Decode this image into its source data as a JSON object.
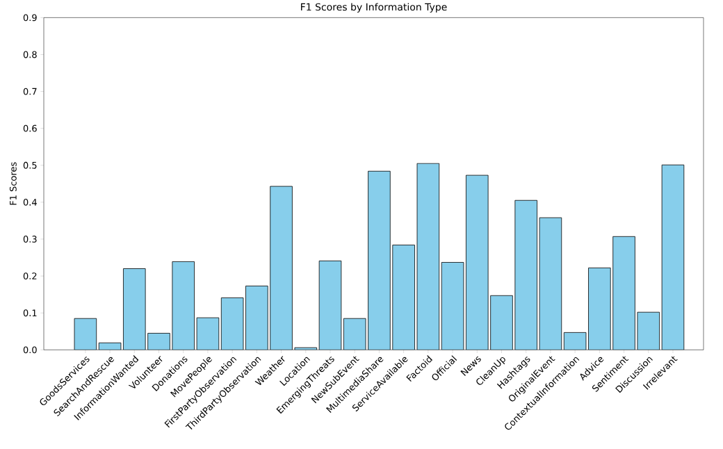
{
  "chart_data": {
    "type": "bar",
    "title": "F1 Scores by Information Type",
    "ylabel": "F1 Scores",
    "categories": [
      "GoodsServices",
      "SearchAndRescue",
      "InformationWanted",
      "Volunteer",
      "Donations",
      "MovePeople",
      "FirstPartyObservation",
      "ThirdPartyObservation",
      "Weather",
      "Location",
      "EmergingThreats",
      "NewSubEvent",
      "MultimediaShare",
      "ServiceAvailable",
      "Factoid",
      "Official",
      "News",
      "CleanUp",
      "Hashtags",
      "OriginalEvent",
      "ContextualInformation",
      "Advice",
      "Sentiment",
      "Discussion",
      "Irrelevant"
    ],
    "values": [
      0.085,
      0.019,
      0.22,
      0.045,
      0.239,
      0.087,
      0.141,
      0.173,
      0.443,
      0.006,
      0.241,
      0.085,
      0.484,
      0.284,
      0.505,
      0.237,
      0.473,
      0.147,
      0.405,
      0.358,
      0.047,
      0.222,
      0.307,
      0.102,
      0.501
    ],
    "color": "#87ceeb",
    "ylim": [
      0,
      0.9
    ],
    "yticks": [
      {
        "value": 0,
        "label": "0.0"
      },
      0.1,
      0.2,
      0.3,
      0.4,
      0.5,
      0.6,
      0.7,
      0.8,
      0.9
    ]
  }
}
